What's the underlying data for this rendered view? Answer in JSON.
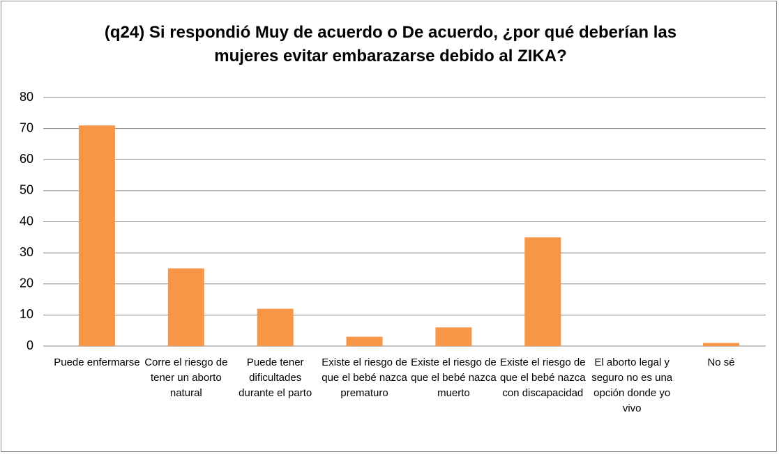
{
  "chart_data": {
    "type": "bar",
    "title": "(q24) Si respondió Muy de acuerdo o De acuerdo, ¿por qué deberían las mujeres evitar embarazarse debido al ZIKA?",
    "categories": [
      "Puede enfermarse",
      "Corre el riesgo de tener un aborto natural",
      "Puede tener dificultades durante el parto",
      "Existe el riesgo de que el bebé nazca prematuro",
      "Existe el riesgo de que el bebé nazca muerto",
      "Existe el riesgo de que el bebé nazca con discapacidad",
      "El aborto legal y seguro no es una opción donde yo vivo",
      "No sé"
    ],
    "values": [
      71,
      25,
      12,
      3,
      6,
      35,
      0,
      1
    ],
    "color": "#f79646",
    "ylim": [
      0,
      80
    ],
    "yticks": [
      0,
      10,
      20,
      30,
      40,
      50,
      60,
      70,
      80
    ],
    "grid": true
  }
}
